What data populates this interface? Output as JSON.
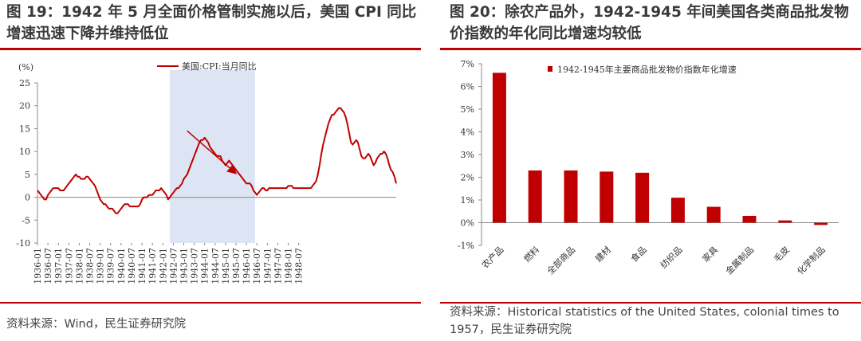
{
  "figure_left": {
    "title": "图 19：1942 年 5 月全面价格管制实施以后，美国 CPI 同比增速迅速下降并维持低位",
    "source": "资料来源：Wind，民生证券研究院"
  },
  "figure_right": {
    "title": "图 20：除农产品外，1942-1945 年间美国各类商品批发物价指数的年化同比增速均较低",
    "source": "资料来源：Historical statistics of the United States, colonial times to 1957，民生证券研究院"
  },
  "colors": {
    "series": "#c00000",
    "shade": "#dde4f3",
    "rule": "#c00000"
  },
  "chart_data": [
    {
      "type": "line",
      "unit_label": "(%)",
      "ylim": [
        -10,
        25
      ],
      "yticks": [
        -10,
        -5,
        0,
        5,
        10,
        15,
        20,
        25
      ],
      "xlabels": [
        "1936-01",
        "1936-07",
        "1937-01",
        "1937-07",
        "1938-01",
        "1938-07",
        "1939-01",
        "1939-07",
        "1940-01",
        "1940-07",
        "1941-01",
        "1941-07",
        "1942-01",
        "1942-07",
        "1943-01",
        "1943-07",
        "1944-01",
        "1944-07",
        "1945-01",
        "1945-07",
        "1946-01",
        "1946-07",
        "1947-01",
        "1947-07",
        "1948-01",
        "1948-07"
      ],
      "legend": "美国:CPI:当月同比",
      "shaded_period": [
        "1942-05",
        "1946-06"
      ],
      "annotation": "arrow: falling trend 1943 → 1945",
      "x_start": "1936-01",
      "x_step": "1 month",
      "series": [
        {
          "name": "美国:CPI:当月同比",
          "values": [
            1.5,
            1.0,
            0.5,
            0.0,
            -0.5,
            -0.5,
            0.5,
            1.0,
            1.5,
            2.0,
            2.0,
            2.0,
            2.0,
            1.5,
            1.5,
            1.5,
            2.0,
            2.5,
            3.0,
            3.5,
            4.0,
            4.5,
            5.0,
            4.5,
            4.5,
            4.0,
            4.0,
            4.0,
            4.5,
            4.5,
            4.0,
            3.5,
            3.0,
            2.5,
            1.5,
            0.5,
            -0.5,
            -1.0,
            -1.5,
            -1.5,
            -2.0,
            -2.5,
            -2.5,
            -2.5,
            -3.0,
            -3.5,
            -3.5,
            -3.0,
            -2.5,
            -2.0,
            -1.5,
            -1.5,
            -1.5,
            -2.0,
            -2.0,
            -2.0,
            -2.0,
            -2.0,
            -2.0,
            -1.5,
            -0.5,
            0.0,
            0.0,
            0.0,
            0.5,
            0.5,
            0.5,
            1.0,
            1.5,
            1.5,
            1.5,
            2.0,
            1.5,
            1.0,
            0.5,
            -0.5,
            0.0,
            0.5,
            1.0,
            1.5,
            2.0,
            2.0,
            2.5,
            3.0,
            4.0,
            4.5,
            5.0,
            6.0,
            7.0,
            8.0,
            9.0,
            10.0,
            11.0,
            12.0,
            12.5,
            12.5,
            13.0,
            12.5,
            12.0,
            11.0,
            10.5,
            10.0,
            9.5,
            9.0,
            9.0,
            9.0,
            8.0,
            7.5,
            7.0,
            7.5,
            8.0,
            7.5,
            7.0,
            6.5,
            6.0,
            5.5,
            5.0,
            4.5,
            4.0,
            3.5,
            3.0,
            3.0,
            3.0,
            2.5,
            1.5,
            1.0,
            0.5,
            1.0,
            1.5,
            2.0,
            2.0,
            1.5,
            1.5,
            2.0,
            2.0,
            2.0,
            2.0,
            2.0,
            2.0,
            2.0,
            2.0,
            2.0,
            2.0,
            2.0,
            2.5,
            2.5,
            2.5,
            2.0,
            2.0,
            2.0,
            2.0,
            2.0,
            2.0,
            2.0,
            2.0,
            2.0,
            2.0,
            2.0,
            2.5,
            3.0,
            3.5,
            5.0,
            7.0,
            9.5,
            11.5,
            13.0,
            14.5,
            16.0,
            17.0,
            18.0,
            18.0,
            18.5,
            19.0,
            19.5,
            19.5,
            19.0,
            18.5,
            17.5,
            16.0,
            14.0,
            12.0,
            11.5,
            12.0,
            12.5,
            12.0,
            10.5,
            9.0,
            8.5,
            8.5,
            9.0,
            9.5,
            9.0,
            8.0,
            7.0,
            7.5,
            8.5,
            9.0,
            9.5,
            9.5,
            10.0,
            9.5,
            8.5,
            7.0,
            6.0,
            5.5,
            4.5,
            3.0
          ]
        }
      ]
    },
    {
      "type": "bar",
      "legend": "1942-1945年主要商品批发物价指数年化增速",
      "ylim": [
        -1,
        7
      ],
      "yticks": [
        "7%",
        "6%",
        "5%",
        "4%",
        "3%",
        "2%",
        "1%",
        "0%",
        "-1%"
      ],
      "categories": [
        "农产品",
        "燃料",
        "全部商品",
        "建材",
        "食品",
        "纺织品",
        "家具",
        "金属制品",
        "毛皮",
        "化学制品"
      ],
      "values": [
        6.6,
        2.3,
        2.3,
        2.25,
        2.2,
        1.1,
        0.7,
        0.3,
        0.1,
        -0.1
      ]
    }
  ]
}
